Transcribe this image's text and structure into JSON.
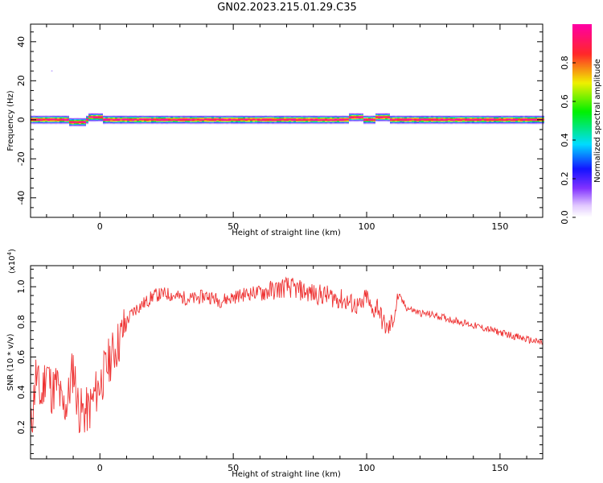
{
  "figure_title": "GN02.2023.215.01.29.C35",
  "chart_data": [
    {
      "type": "heatmap",
      "title": "GN02.2023.215.01.29.C35",
      "xlabel": "Height of straight line (km)",
      "ylabel": "Frequency (Hz)",
      "xlim": [
        -26,
        166
      ],
      "ylim": [
        -50,
        49
      ],
      "xticks": [
        0,
        50,
        100,
        150
      ],
      "yticks": [
        -40,
        -20,
        0,
        20,
        40
      ],
      "colorbar": {
        "label": "Normalized spectral amplitude",
        "range": [
          0,
          1
        ],
        "ticks": [
          "0.0",
          "0.2",
          "0.4",
          "0.6",
          "0.8"
        ],
        "colormap": "rainbow (white-violet-blue-cyan-green-yellow-red-magenta)"
      },
      "description": "Energy concentrated along 0 Hz across the full height range"
    },
    {
      "type": "line",
      "xlabel": "Height of straight line (km)",
      "ylabel": "SNR (10 * v/v)",
      "y_exponent_label": "(x10",
      "y_exponent": "4",
      "xlim": [
        -26,
        166
      ],
      "ylim": [
        0.02,
        1.12
      ],
      "xticks": [
        0,
        50,
        100,
        150
      ],
      "yticks": [
        "0.2",
        "0.4",
        "0.6",
        "0.8",
        "1.0"
      ],
      "color": "#ee3333",
      "x": [
        -26,
        -24,
        -22,
        -20,
        -18,
        -16,
        -14,
        -12,
        -10,
        -8,
        -6,
        -4,
        -2,
        0,
        2,
        4,
        6,
        8,
        10,
        12,
        14,
        16,
        18,
        20,
        25,
        30,
        35,
        40,
        45,
        50,
        55,
        60,
        65,
        70,
        75,
        80,
        85,
        90,
        95,
        98,
        100,
        102,
        104,
        106,
        108,
        110,
        112,
        115,
        120,
        125,
        130,
        135,
        140,
        145,
        150,
        155,
        160,
        166
      ],
      "values": [
        0.15,
        0.5,
        0.35,
        0.55,
        0.4,
        0.45,
        0.3,
        0.35,
        0.55,
        0.3,
        0.28,
        0.3,
        0.38,
        0.45,
        0.52,
        0.6,
        0.65,
        0.72,
        0.8,
        0.85,
        0.88,
        0.9,
        0.92,
        0.95,
        0.96,
        0.94,
        0.93,
        0.95,
        0.92,
        0.94,
        0.96,
        0.97,
        0.98,
        1.0,
        0.98,
        0.96,
        0.95,
        0.93,
        0.9,
        0.88,
        0.95,
        0.85,
        0.9,
        0.8,
        0.75,
        0.82,
        0.95,
        0.88,
        0.85,
        0.84,
        0.82,
        0.8,
        0.78,
        0.76,
        0.74,
        0.72,
        0.7,
        0.68
      ]
    }
  ]
}
